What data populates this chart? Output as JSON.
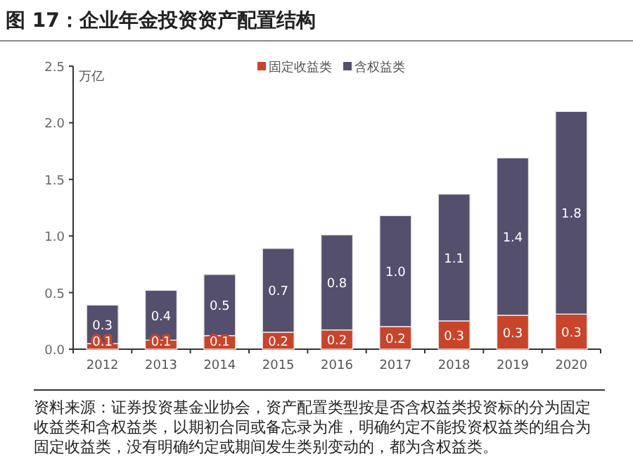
{
  "chart_data": {
    "type": "bar",
    "stacked": true,
    "title": "图 17：企业年金投资资产配置结构",
    "ylabel": "万亿",
    "categories": [
      "2012",
      "2013",
      "2014",
      "2015",
      "2016",
      "2017",
      "2018",
      "2019",
      "2020"
    ],
    "series": [
      {
        "name": "固定收益类",
        "color": "#c8442a",
        "values": [
          0.05,
          0.08,
          0.12,
          0.15,
          0.17,
          0.2,
          0.25,
          0.3,
          0.31
        ],
        "value_labels": [
          "0.1",
          "0.1",
          "0.1",
          "0.2",
          "0.2",
          "0.2",
          "0.3",
          "0.3",
          "0.3"
        ]
      },
      {
        "name": "含权益类",
        "color": "#554f6e",
        "values": [
          0.34,
          0.44,
          0.54,
          0.74,
          0.84,
          0.98,
          1.12,
          1.39,
          1.79
        ],
        "value_labels": [
          "0.3",
          "0.4",
          "0.5",
          "0.7",
          "0.8",
          "1.0",
          "1.1",
          "1.4",
          "1.8"
        ]
      }
    ],
    "ylim": [
      0,
      2.5
    ],
    "yticks": [
      {
        "value": 0,
        "label": "0.0"
      },
      {
        "value": 0.5,
        "label": "0.5"
      },
      {
        "value": 1,
        "label": "1.0"
      },
      {
        "value": 1.5,
        "label": "1.5"
      },
      {
        "value": 2,
        "label": "2.0"
      },
      {
        "value": 2.5,
        "label": "2.5"
      }
    ],
    "legend": "top",
    "grid": false,
    "annotations": [
      "资料来源：证券投资基金业协会，资产配置类型按是否含权益类投资标的分为固定收益类和含权益类，以期初合同或备忘录为准，明确约定不能投资权益类的组合为固定收益类，没有明确约定或期间发生类别变动的，都为含权益类。"
    ]
  }
}
